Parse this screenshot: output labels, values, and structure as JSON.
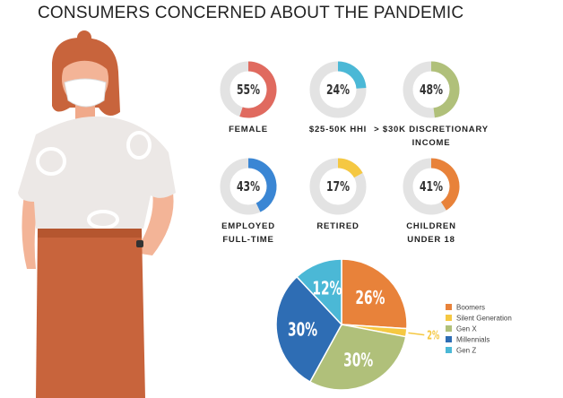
{
  "title": "CONSUMERS CONCERNED ABOUT THE PANDEMIC",
  "chart_data": [
    {
      "type": "donut",
      "categories": [
        "FEMALE"
      ],
      "values": [
        55
      ],
      "value_labels": [
        "55%"
      ],
      "color": "#e06a5f"
    },
    {
      "type": "donut",
      "categories": [
        "$25-50K HHI"
      ],
      "values": [
        24
      ],
      "value_labels": [
        "24%"
      ],
      "color": "#4bb8d6"
    },
    {
      "type": "donut",
      "categories": [
        "> $30K DISCRETIONARY INCOME"
      ],
      "values": [
        48
      ],
      "value_labels": [
        "48%"
      ],
      "color": "#b0c07a"
    },
    {
      "type": "donut",
      "categories": [
        "EMPLOYED FULL-TIME"
      ],
      "values": [
        43
      ],
      "value_labels": [
        "43%"
      ],
      "color": "#3a86d4"
    },
    {
      "type": "donut",
      "categories": [
        "RETIRED"
      ],
      "values": [
        17
      ],
      "value_labels": [
        "17%"
      ],
      "color": "#f5c842"
    },
    {
      "type": "donut",
      "categories": [
        "CHILDREN UNDER 18"
      ],
      "values": [
        41
      ],
      "value_labels": [
        "41%"
      ],
      "color": "#e8823a"
    },
    {
      "type": "pie",
      "categories": [
        "Boomers",
        "Silent Generation",
        "Gen X",
        "Millennials",
        "Gen Z"
      ],
      "values": [
        26,
        2,
        30,
        30,
        12
      ],
      "value_labels": [
        "26%",
        "2%",
        "30%",
        "30%",
        "12%"
      ],
      "colors": [
        "#e8823a",
        "#f5c842",
        "#b0c07a",
        "#2e6db4",
        "#4bb8d6"
      ]
    }
  ]
}
